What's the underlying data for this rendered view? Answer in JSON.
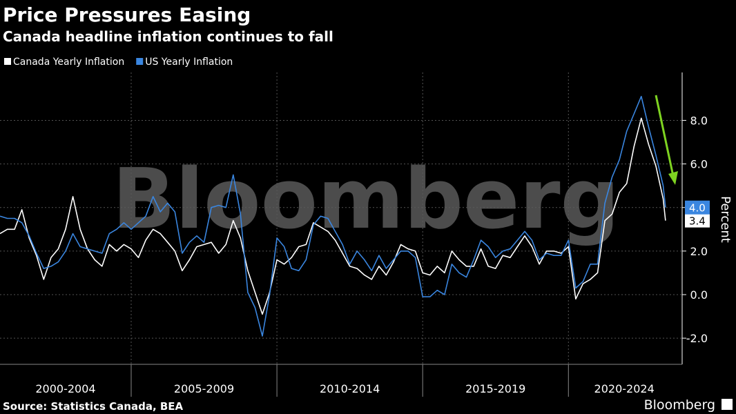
{
  "chart_data": {
    "type": "line",
    "title": "Price Pressures Easing",
    "subtitle": "Canada headline inflation continues to fall",
    "y_label": "Percent",
    "source": "Source: Statistics Canada, BEA",
    "watermark": "Bloomberg",
    "logo": "Bloomberg",
    "xlim": [
      2000.5,
      2023.83
    ],
    "ylim": [
      -3.2,
      10.2
    ],
    "yticks": [
      {
        "value": -2,
        "label": "-2.0"
      },
      {
        "value": 0,
        "label": "0.0"
      },
      {
        "value": 2,
        "label": "2.0"
      },
      {
        "value": 4,
        "label": "4.0"
      },
      {
        "value": 6,
        "label": "6.0"
      },
      {
        "value": 8,
        "label": "8.0"
      }
    ],
    "x_periods": [
      {
        "label": "2000-2004",
        "start": 2000,
        "end": 2005
      },
      {
        "label": "2005-2009",
        "start": 2005,
        "end": 2010
      },
      {
        "label": "2010-2014",
        "start": 2010,
        "end": 2015
      },
      {
        "label": "2015-2019",
        "start": 2015,
        "end": 2020
      },
      {
        "label": "2020-2024",
        "start": 2020,
        "end": 2025
      }
    ],
    "grid": true,
    "x": [
      2000.5,
      2000.75,
      2001,
      2001.25,
      2001.5,
      2001.75,
      2002,
      2002.25,
      2002.5,
      2002.75,
      2003,
      2003.25,
      2003.5,
      2003.75,
      2004,
      2004.25,
      2004.5,
      2004.75,
      2005,
      2005.25,
      2005.5,
      2005.75,
      2006,
      2006.25,
      2006.5,
      2006.75,
      2007,
      2007.25,
      2007.5,
      2007.75,
      2008,
      2008.25,
      2008.5,
      2008.75,
      2009,
      2009.25,
      2009.5,
      2009.75,
      2010,
      2010.25,
      2010.5,
      2010.75,
      2011,
      2011.25,
      2011.5,
      2011.75,
      2012,
      2012.25,
      2012.5,
      2012.75,
      2013,
      2013.25,
      2013.5,
      2013.75,
      2014,
      2014.25,
      2014.5,
      2014.75,
      2015,
      2015.25,
      2015.5,
      2015.75,
      2016,
      2016.25,
      2016.5,
      2016.75,
      2017,
      2017.25,
      2017.5,
      2017.75,
      2018,
      2018.25,
      2018.5,
      2018.75,
      2019,
      2019.25,
      2019.5,
      2019.75,
      2020,
      2020.25,
      2020.5,
      2020.75,
      2021,
      2021.25,
      2021.5,
      2021.75,
      2022,
      2022.25,
      2022.5,
      2022.75,
      2023,
      2023.25,
      2023.33
    ],
    "series": [
      {
        "name": "Canada Yearly Inflation",
        "color": "#ffffff",
        "last_label": "3.4",
        "values": [
          2.8,
          3.0,
          3.0,
          3.9,
          2.6,
          1.8,
          0.7,
          1.7,
          2.1,
          3.0,
          4.5,
          3.0,
          2.1,
          1.6,
          1.3,
          2.3,
          2.0,
          2.3,
          2.1,
          1.7,
          2.5,
          3.0,
          2.8,
          2.4,
          2.0,
          1.1,
          1.6,
          2.2,
          2.3,
          2.4,
          1.9,
          2.3,
          3.4,
          2.6,
          1.1,
          0.1,
          -0.9,
          0.1,
          1.6,
          1.4,
          1.7,
          2.2,
          2.3,
          3.3,
          3.1,
          2.9,
          2.5,
          1.9,
          1.3,
          1.2,
          0.9,
          0.7,
          1.3,
          0.9,
          1.5,
          2.3,
          2.1,
          2.0,
          1.0,
          0.9,
          1.3,
          1.0,
          2.0,
          1.6,
          1.3,
          1.3,
          2.1,
          1.3,
          1.2,
          1.8,
          1.7,
          2.2,
          2.7,
          2.2,
          1.4,
          2.0,
          2.0,
          1.9,
          2.2,
          -0.2,
          0.5,
          0.7,
          1.0,
          3.4,
          3.7,
          4.7,
          5.1,
          6.8,
          8.1,
          6.9,
          5.9,
          4.4,
          3.4
        ]
      },
      {
        "name": "US Yearly Inflation",
        "color": "#3a86e0",
        "last_label": "4.0",
        "values": [
          3.6,
          3.5,
          3.5,
          3.3,
          2.7,
          1.9,
          1.2,
          1.3,
          1.5,
          2.0,
          2.8,
          2.2,
          2.1,
          2.0,
          1.9,
          2.8,
          3.0,
          3.3,
          3.0,
          3.3,
          3.6,
          4.5,
          3.8,
          4.2,
          3.8,
          1.9,
          2.4,
          2.7,
          2.4,
          4.0,
          4.1,
          4.0,
          5.5,
          3.7,
          0.1,
          -0.6,
          -1.9,
          0.0,
          2.6,
          2.2,
          1.2,
          1.1,
          1.6,
          3.2,
          3.6,
          3.5,
          2.9,
          2.3,
          1.4,
          2.0,
          1.6,
          1.1,
          1.8,
          1.2,
          1.6,
          2.0,
          2.0,
          1.7,
          -0.1,
          -0.1,
          0.2,
          0.0,
          1.4,
          1.0,
          0.8,
          1.6,
          2.5,
          2.2,
          1.7,
          2.0,
          2.1,
          2.5,
          2.9,
          2.5,
          1.6,
          1.9,
          1.8,
          1.8,
          2.5,
          0.3,
          0.6,
          1.4,
          1.4,
          4.2,
          5.4,
          6.2,
          7.5,
          8.3,
          9.1,
          7.7,
          6.4,
          5.0,
          4.0
        ]
      }
    ]
  }
}
